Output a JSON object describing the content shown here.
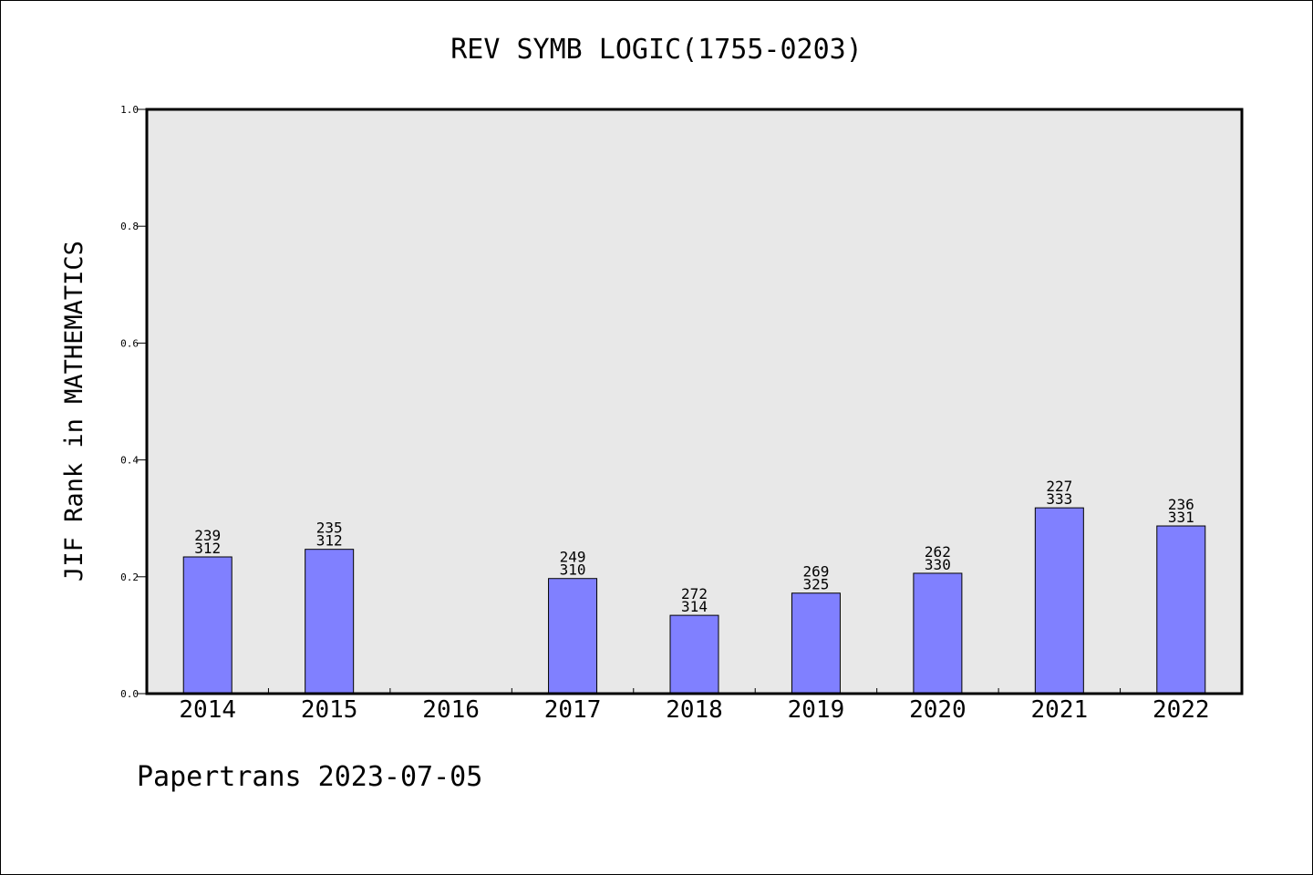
{
  "chart_data": {
    "type": "bar",
    "title": "REV SYMB LOGIC(1755-0203)",
    "xlabel": "",
    "ylabel": "JIF Rank in MATHEMATICS",
    "ylim": [
      0,
      1.0
    ],
    "yticks": [
      "0.0",
      "0.2",
      "0.4",
      "0.6",
      "0.8",
      "1.0"
    ],
    "categories": [
      "2014",
      "2015",
      "2016",
      "2017",
      "2018",
      "2019",
      "2020",
      "2021",
      "2022"
    ],
    "values": [
      0.234,
      0.247,
      null,
      0.197,
      0.134,
      0.172,
      0.206,
      0.318,
      0.287
    ],
    "rank_labels": [
      {
        "rank": "239",
        "total": "312"
      },
      {
        "rank": "235",
        "total": "312"
      },
      null,
      {
        "rank": "249",
        "total": "310"
      },
      {
        "rank": "272",
        "total": "314"
      },
      {
        "rank": "269",
        "total": "325"
      },
      {
        "rank": "262",
        "total": "330"
      },
      {
        "rank": "227",
        "total": "333"
      },
      {
        "rank": "236",
        "total": "331"
      }
    ],
    "grid": false,
    "colors": {
      "bar": "#8080ff",
      "plot_background": "#e8e8e8",
      "axis": "#000000"
    }
  },
  "footer": {
    "text": "Papertrans 2023-07-05"
  }
}
